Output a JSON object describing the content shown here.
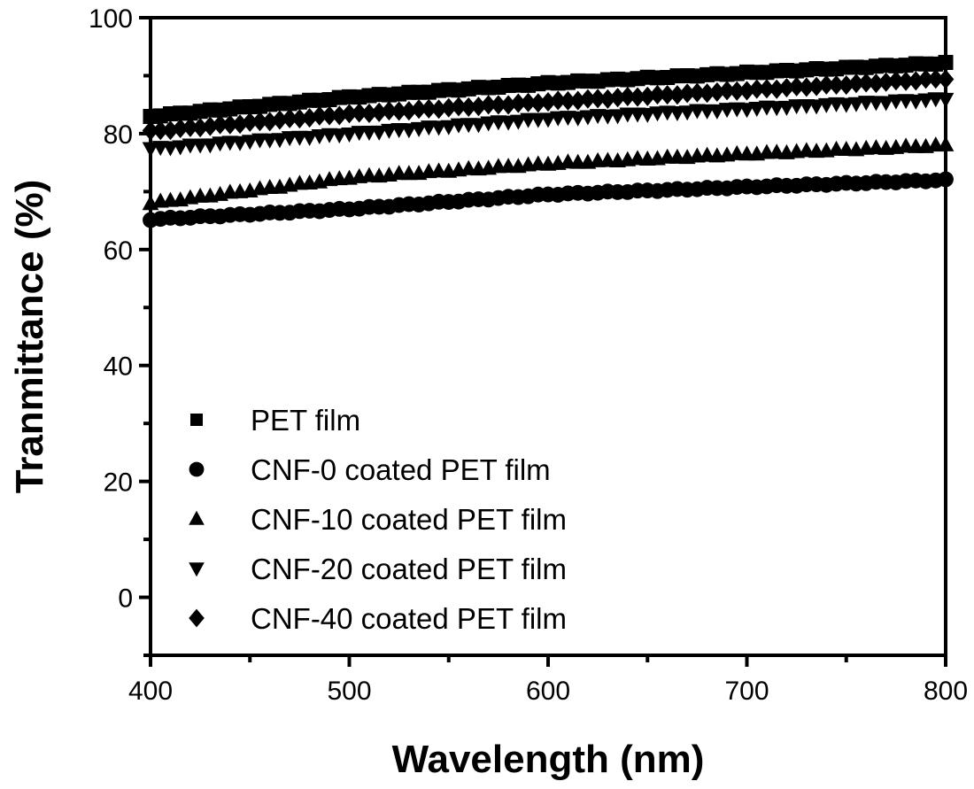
{
  "chart_data": {
    "type": "scatter",
    "title": "",
    "xlabel": "Wavelength (nm)",
    "ylabel": "Tranmittance (%)",
    "xlim": [
      400,
      800
    ],
    "ylim": [
      -10,
      100
    ],
    "xticks": [
      400,
      500,
      600,
      700,
      800
    ],
    "xtick_labels": [
      "400",
      "500",
      "600",
      "700",
      "800"
    ],
    "xminor_ticks": [
      450,
      550,
      650,
      750
    ],
    "yticks": [
      0,
      20,
      40,
      60,
      80,
      100
    ],
    "ytick_labels": [
      "0",
      "20",
      "40",
      "60",
      "80",
      "100"
    ],
    "yminor_ticks": [
      -10,
      10,
      30,
      50,
      70,
      90
    ],
    "grid": false,
    "legend_position": "bottom-left",
    "x_step_nm": 5,
    "series": [
      {
        "name": "PET film",
        "marker": "square",
        "color": "#000000",
        "anchors_x": [
          400,
          500,
          600,
          700,
          800
        ],
        "anchors_y": [
          83.0,
          86.3,
          88.7,
          90.5,
          92.2
        ]
      },
      {
        "name": "CNF-0 coated PET film",
        "marker": "circle",
        "color": "#000000",
        "anchors_x": [
          400,
          500,
          600,
          700,
          800
        ],
        "anchors_y": [
          65.2,
          67.0,
          69.5,
          70.8,
          72.0
        ]
      },
      {
        "name": "CNF-10 coated PET film",
        "marker": "triangle-up",
        "color": "#000000",
        "anchors_x": [
          400,
          500,
          600,
          700,
          800
        ],
        "anchors_y": [
          68.0,
          72.4,
          74.8,
          76.5,
          78.0
        ]
      },
      {
        "name": "CNF-20 coated PET film",
        "marker": "triangle-down",
        "color": "#000000",
        "anchors_x": [
          400,
          500,
          600,
          700,
          800
        ],
        "anchors_y": [
          77.4,
          80.0,
          82.6,
          84.3,
          86.0
        ]
      },
      {
        "name": "CNF-40 coated PET film",
        "marker": "diamond",
        "color": "#000000",
        "anchors_x": [
          400,
          500,
          600,
          700,
          800
        ],
        "anchors_y": [
          80.4,
          83.4,
          85.5,
          87.5,
          89.5
        ]
      }
    ]
  }
}
